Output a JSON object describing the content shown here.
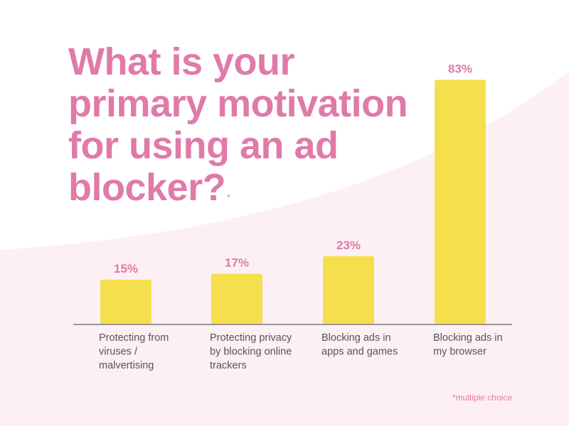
{
  "title": "What is your primary motivation for using an ad blocker?",
  "title_marker": "*",
  "footnote": "*multiple choice",
  "colors": {
    "title": "#e07aa8",
    "bar": "#f5df4d",
    "value_label": "#e07aa8",
    "category_label": "#555555",
    "axis": "#777777",
    "background_wave": "#fdf0f5"
  },
  "chart_data": {
    "type": "bar",
    "title": "What is your primary motivation for using an ad blocker?",
    "categories": [
      "Protecting from viruses / malvertising",
      "Protecting privacy by blocking online trackers",
      "Blocking ads in apps and games",
      "Blocking ads in my browser"
    ],
    "category_lines": [
      [
        "Protecting from",
        "viruses /",
        "malvertising"
      ],
      [
        "Protecting privacy",
        "by blocking online",
        "trackers"
      ],
      [
        "Blocking ads in",
        "apps and games"
      ],
      [
        "Blocking ads in",
        "my browser"
      ]
    ],
    "values": [
      15,
      17,
      23,
      83
    ],
    "value_labels": [
      "15%",
      "17%",
      "23%",
      "83%"
    ],
    "xlabel": "",
    "ylabel": "",
    "ylim": [
      0,
      100
    ],
    "grid": false,
    "legend": "none"
  }
}
